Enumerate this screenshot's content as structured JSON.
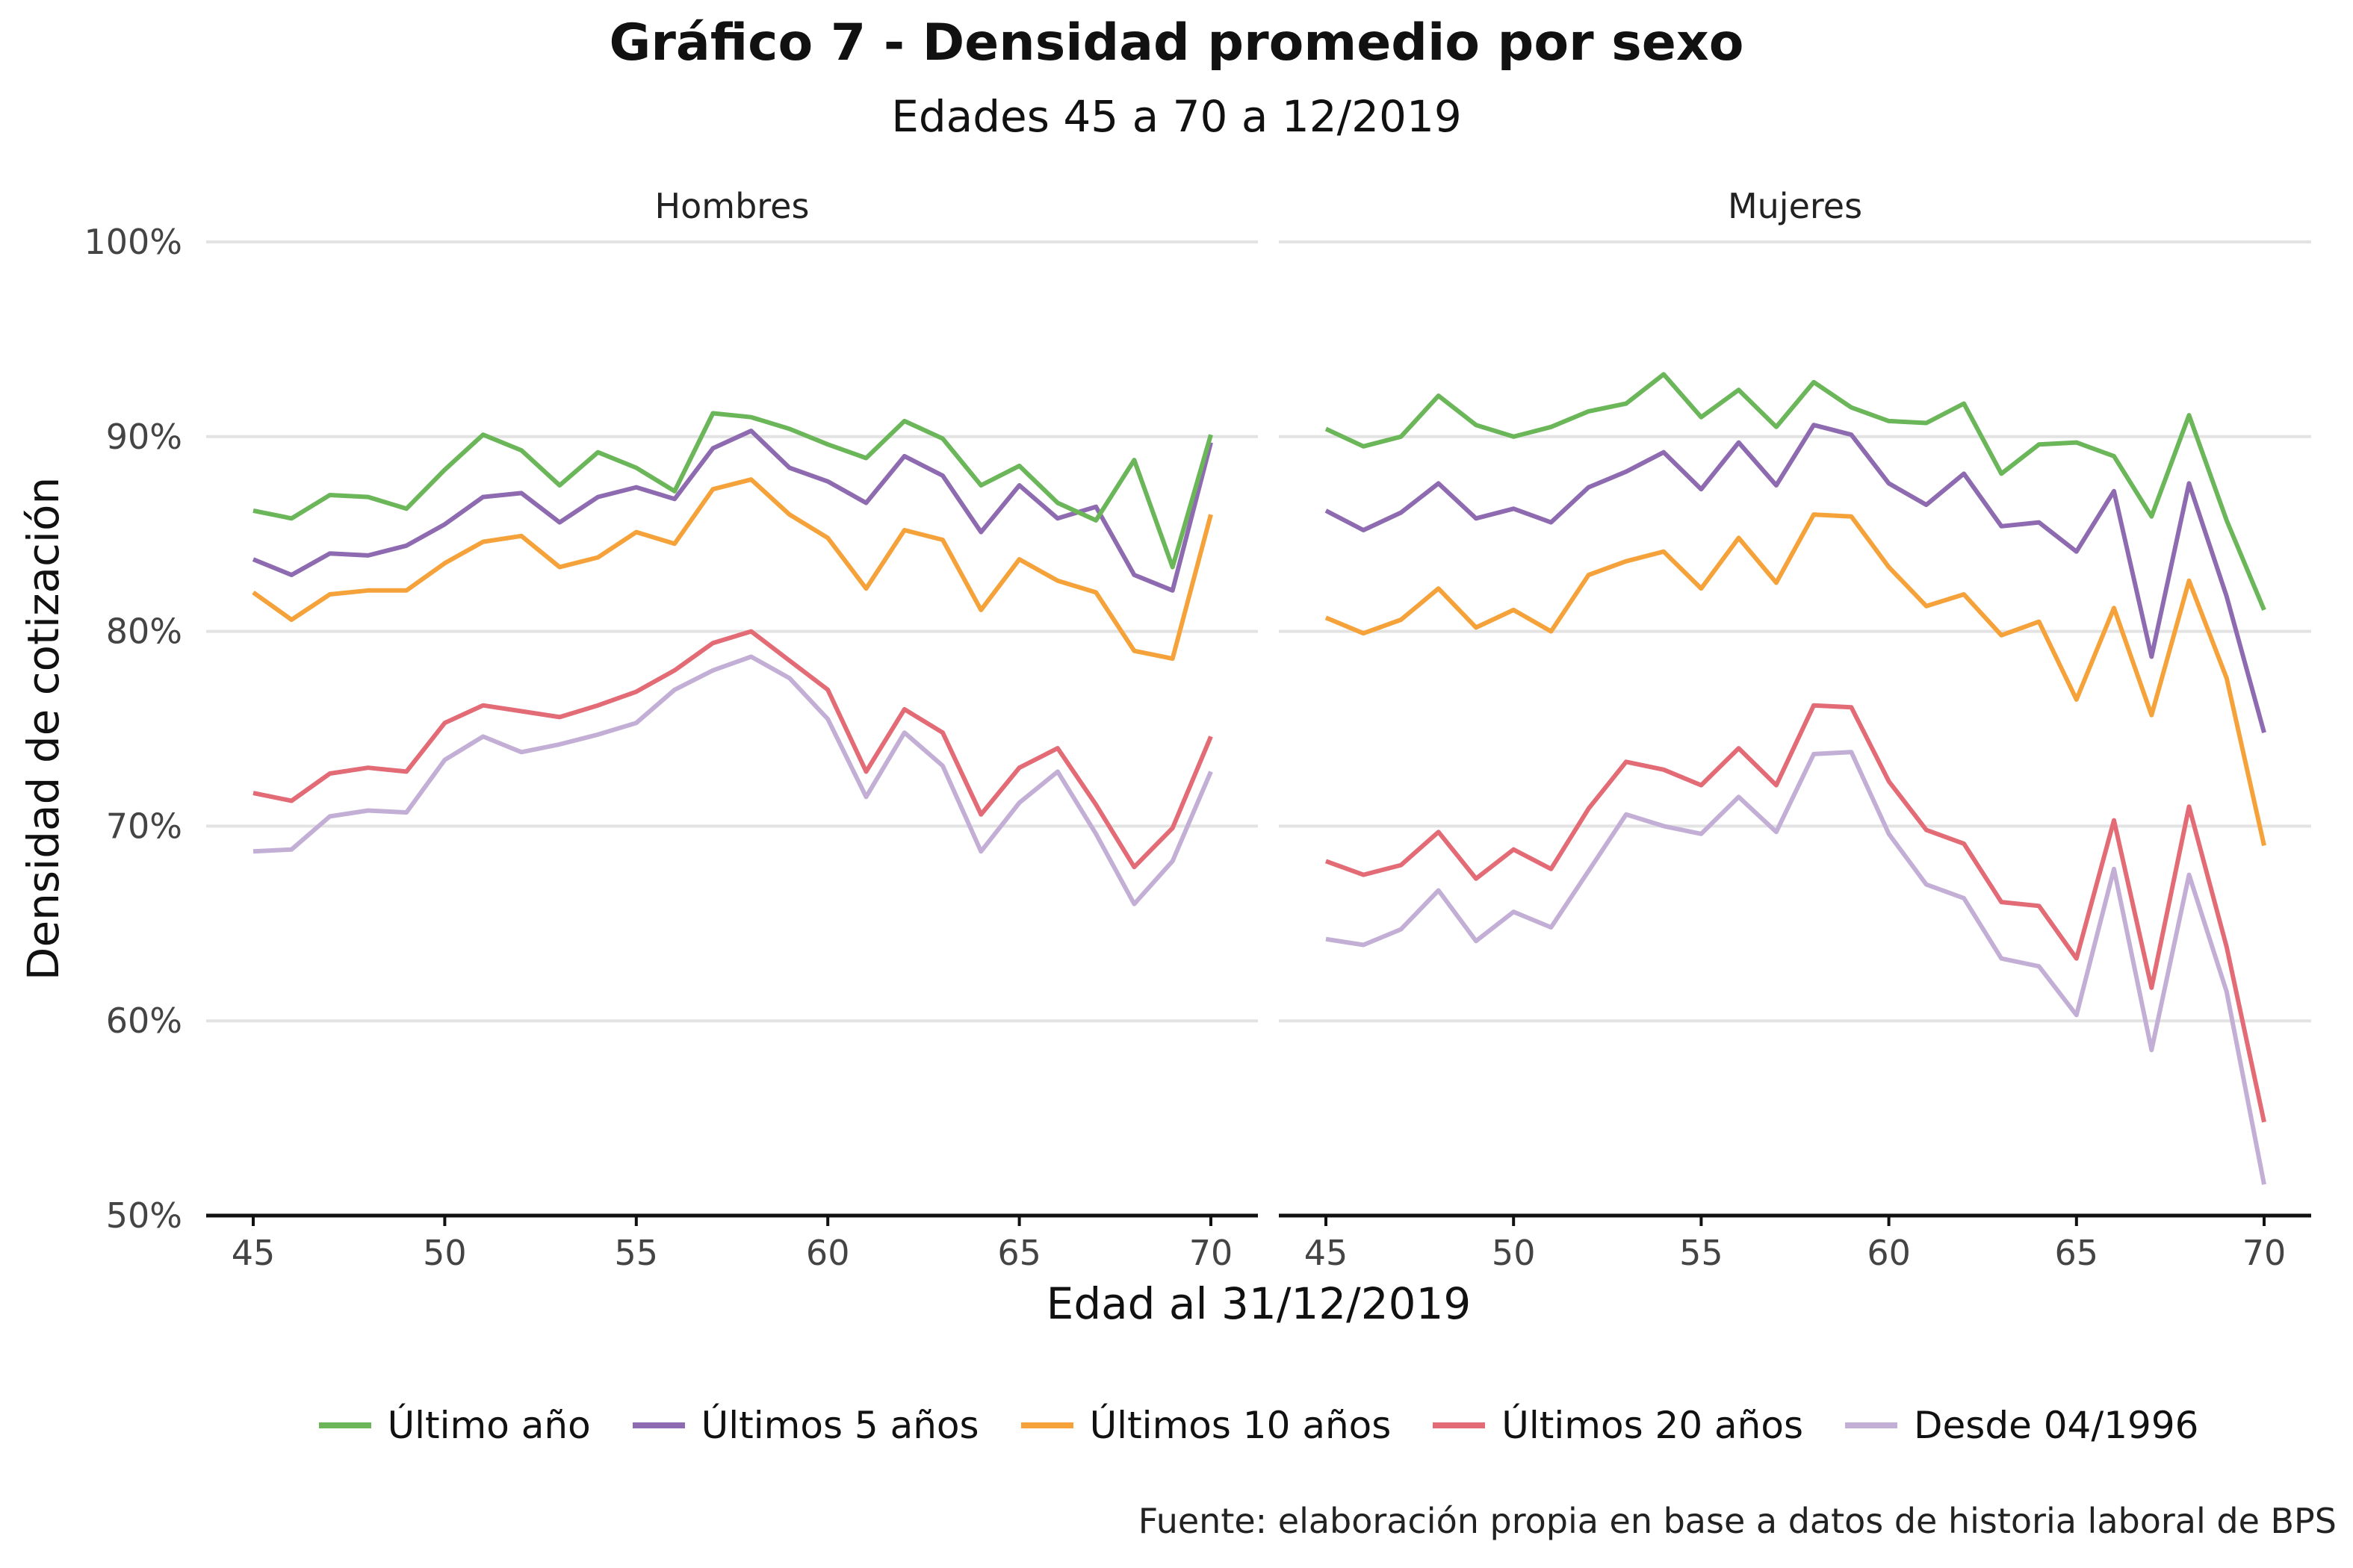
{
  "title": "Gráfico 7 - Densidad promedio por sexo",
  "subtitle": "Edades 45 a 70 a 12/2019",
  "caption": "Fuente: elaboración propia en base a datos de historia laboral de BPS",
  "chart_data": {
    "type": "line",
    "xlabel": "Edad al 31/12/2019",
    "ylabel": "Densidad de cotización",
    "x": [
      45,
      46,
      47,
      48,
      49,
      50,
      51,
      52,
      53,
      54,
      55,
      56,
      57,
      58,
      59,
      60,
      61,
      62,
      63,
      64,
      65,
      66,
      67,
      68,
      69,
      70
    ],
    "xlim": [
      45,
      70
    ],
    "ylim": [
      50,
      100
    ],
    "x_ticks": [
      "45",
      "50",
      "55",
      "60",
      "65",
      "70"
    ],
    "y_ticks": [
      "50%",
      "60%",
      "70%",
      "80%",
      "90%",
      "100%"
    ],
    "grid": "horizontal",
    "legend_position": "bottom",
    "series_order": [
      "Último año",
      "Últimos 5 años",
      "Últimos 10 años",
      "Últimos 20 años",
      "Desde 04/1996"
    ],
    "colors": {
      "Último año": "#6ab659",
      "Últimos 5 años": "#8e6bb0",
      "Últimos 10 años": "#f5a23a",
      "Últimos 20 años": "#e26b76",
      "Desde 04/1996": "#c3afd6"
    },
    "panels": [
      {
        "label": "Hombres",
        "series": [
          {
            "name": "Último año",
            "values": [
              86.2,
              85.8,
              87.0,
              86.9,
              86.3,
              88.3,
              90.1,
              89.3,
              87.5,
              89.2,
              88.4,
              87.2,
              91.2,
              91.0,
              90.4,
              89.6,
              88.9,
              90.8,
              89.9,
              87.5,
              88.5,
              86.6,
              85.7,
              88.8,
              83.3,
              90.1
            ]
          },
          {
            "name": "Últimos 5 años",
            "values": [
              83.7,
              82.9,
              84.0,
              83.9,
              84.4,
              85.5,
              86.9,
              87.1,
              85.6,
              86.9,
              87.4,
              86.8,
              89.4,
              90.3,
              88.4,
              87.7,
              86.6,
              89.0,
              88.0,
              85.1,
              87.5,
              85.8,
              86.4,
              82.9,
              82.1,
              89.7
            ]
          },
          {
            "name": "Últimos 10 años",
            "values": [
              82.0,
              80.6,
              81.9,
              82.1,
              82.1,
              83.5,
              84.6,
              84.9,
              83.3,
              83.8,
              85.1,
              84.5,
              87.3,
              87.8,
              86.0,
              84.8,
              82.2,
              85.2,
              84.7,
              81.1,
              83.7,
              82.6,
              82.0,
              79.0,
              78.6,
              86.0
            ]
          },
          {
            "name": "Últimos 20 años",
            "values": [
              71.7,
              71.3,
              72.7,
              73.0,
              72.8,
              75.3,
              76.2,
              75.9,
              75.6,
              76.2,
              76.9,
              78.0,
              79.4,
              80.0,
              78.5,
              77.0,
              72.8,
              76.0,
              74.8,
              70.6,
              73.0,
              74.0,
              71.1,
              67.9,
              69.9,
              74.6
            ]
          },
          {
            "name": "Desde 04/1996",
            "values": [
              68.7,
              68.8,
              70.5,
              70.8,
              70.7,
              73.4,
              74.6,
              73.8,
              74.2,
              74.7,
              75.3,
              77.0,
              78.0,
              78.7,
              77.6,
              75.5,
              71.5,
              74.8,
              73.1,
              68.7,
              71.2,
              72.8,
              69.6,
              66.0,
              68.2,
              72.8
            ]
          }
        ]
      },
      {
        "label": "Mujeres",
        "series": [
          {
            "name": "Último año",
            "values": [
              90.4,
              89.5,
              90.0,
              92.1,
              90.6,
              90.0,
              90.5,
              91.3,
              91.7,
              93.2,
              91.0,
              92.4,
              90.5,
              92.8,
              91.5,
              90.8,
              90.7,
              91.7,
              88.1,
              89.6,
              89.7,
              89.0,
              85.9,
              91.1,
              85.7,
              81.1
            ]
          },
          {
            "name": "Últimos 5 años",
            "values": [
              86.2,
              85.2,
              86.1,
              87.6,
              85.8,
              86.3,
              85.6,
              87.4,
              88.2,
              89.2,
              87.3,
              89.7,
              87.5,
              90.6,
              90.1,
              87.6,
              86.5,
              88.1,
              85.4,
              85.6,
              84.1,
              87.2,
              78.7,
              87.6,
              81.8,
              74.8
            ]
          },
          {
            "name": "Últimos 10 años",
            "values": [
              80.7,
              79.9,
              80.6,
              82.2,
              80.2,
              81.1,
              80.0,
              82.9,
              83.6,
              84.1,
              82.2,
              84.8,
              82.5,
              86.0,
              85.9,
              83.3,
              81.3,
              81.9,
              79.8,
              80.5,
              76.5,
              81.2,
              75.7,
              82.6,
              77.6,
              69.0
            ]
          },
          {
            "name": "Últimos 20 años",
            "values": [
              68.2,
              67.5,
              68.0,
              69.7,
              67.3,
              68.8,
              67.8,
              70.9,
              73.3,
              72.9,
              72.1,
              74.0,
              72.1,
              76.2,
              76.1,
              72.3,
              69.8,
              69.1,
              66.1,
              65.9,
              63.2,
              70.3,
              61.7,
              71.0,
              63.8,
              54.8
            ]
          },
          {
            "name": "Desde 04/1996",
            "values": [
              64.2,
              63.9,
              64.7,
              66.7,
              64.1,
              65.6,
              64.8,
              67.7,
              70.6,
              70.0,
              69.6,
              71.5,
              69.7,
              73.7,
              73.8,
              69.6,
              67.0,
              66.3,
              63.2,
              62.8,
              60.3,
              67.8,
              58.5,
              67.5,
              61.5,
              51.6
            ]
          }
        ]
      }
    ]
  }
}
